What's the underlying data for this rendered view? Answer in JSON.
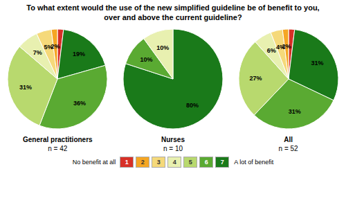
{
  "chart_data": {
    "type": "pie",
    "title": "To what extent would the use of the new simplified guideline be of benefit to you,\nover and above the current guideline?",
    "annotations": [
      "No benefit at all",
      "A lot of benefit"
    ],
    "legend": "bottom",
    "data_labels": true,
    "categories": [
      "1",
      "7",
      "6",
      "5",
      "4",
      "3",
      "2"
    ],
    "colors": [
      "#d73027",
      "#1a7a1a",
      "#5aaa32",
      "#b8d96e",
      "#e8f0b0",
      "#f5d97a",
      "#f5a623"
    ],
    "series": [
      {
        "name": "General practitioners",
        "subtitle": "n = 42",
        "values": [
          2,
          19,
          36,
          31,
          7,
          5,
          2
        ],
        "value_labels": [
          null,
          "19%",
          "36%",
          "31%",
          "7%",
          "5%",
          "2%"
        ]
      },
      {
        "name": "Nurses",
        "subtitle": "n = 10",
        "values": [
          0,
          80,
          10,
          0,
          10,
          0,
          0
        ],
        "value_labels": [
          null,
          "80%",
          "10%",
          null,
          "10%",
          null,
          null
        ]
      },
      {
        "name": "All",
        "subtitle": "n = 52",
        "values": [
          2,
          31,
          31,
          27,
          6,
          4,
          2
        ],
        "value_labels": [
          null,
          "31%",
          "31%",
          "27%",
          "6%",
          "4%",
          "2%"
        ]
      }
    ]
  }
}
